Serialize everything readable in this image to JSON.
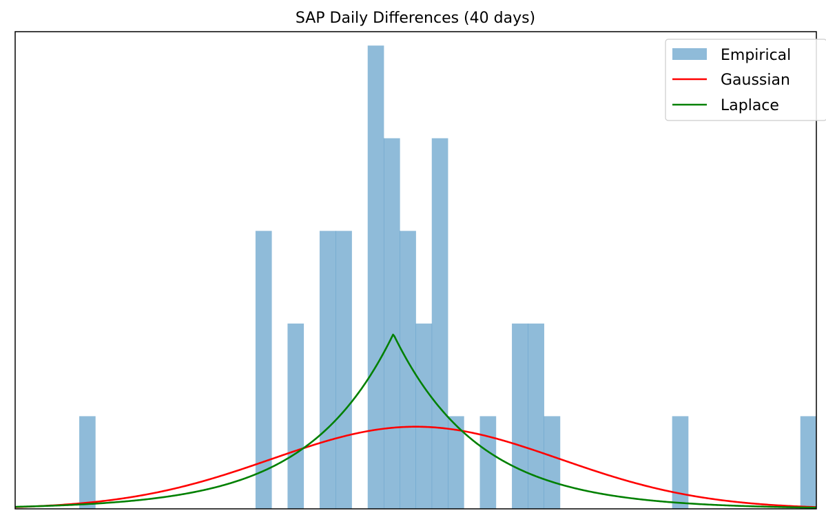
{
  "chart_data": {
    "type": "bar",
    "title": "SAP Daily Differences (40 days)",
    "xlabel": "",
    "ylabel": "",
    "xlim": [
      -3.0,
      2.0
    ],
    "ylim": [
      0,
      5.15
    ],
    "grid": false,
    "axis_ticks": false,
    "legend_position": "top-right",
    "histogram": {
      "name": "Empirical",
      "color": "#1f77b4",
      "alpha": 0.5,
      "bin_width": 0.1,
      "bins": [
        {
          "x0": -2.6,
          "x1": -2.5,
          "height": 1
        },
        {
          "x0": -1.5,
          "x1": -1.4,
          "height": 3
        },
        {
          "x0": -1.3,
          "x1": -1.2,
          "height": 2
        },
        {
          "x0": -1.1,
          "x1": -1.0,
          "height": 3
        },
        {
          "x0": -1.0,
          "x1": -0.9,
          "height": 3
        },
        {
          "x0": -0.8,
          "x1": -0.7,
          "height": 5
        },
        {
          "x0": -0.7,
          "x1": -0.6,
          "height": 4
        },
        {
          "x0": -0.6,
          "x1": -0.5,
          "height": 3
        },
        {
          "x0": -0.5,
          "x1": -0.4,
          "height": 2
        },
        {
          "x0": -0.4,
          "x1": -0.3,
          "height": 4
        },
        {
          "x0": -0.3,
          "x1": -0.2,
          "height": 1
        },
        {
          "x0": -0.1,
          "x1": 0.0,
          "height": 1
        },
        {
          "x0": 0.1,
          "x1": 0.2,
          "height": 2
        },
        {
          "x0": 0.2,
          "x1": 0.3,
          "height": 2
        },
        {
          "x0": 0.3,
          "x1": 0.4,
          "height": 1
        },
        {
          "x0": 1.1,
          "x1": 1.2,
          "height": 1
        },
        {
          "x0": 1.9,
          "x1": 2.0,
          "height": 1
        }
      ]
    },
    "series": [
      {
        "name": "Gaussian",
        "color": "#ff0000",
        "type": "line",
        "curve": "normal",
        "mu": -0.5,
        "sigma": 0.9,
        "scale": 2.0
      },
      {
        "name": "Laplace",
        "color": "#008000",
        "type": "line",
        "curve": "laplace",
        "mu": -0.64,
        "b": 0.53,
        "scale": 2.0
      }
    ],
    "legend": [
      "Empirical",
      "Gaussian",
      "Laplace"
    ]
  }
}
